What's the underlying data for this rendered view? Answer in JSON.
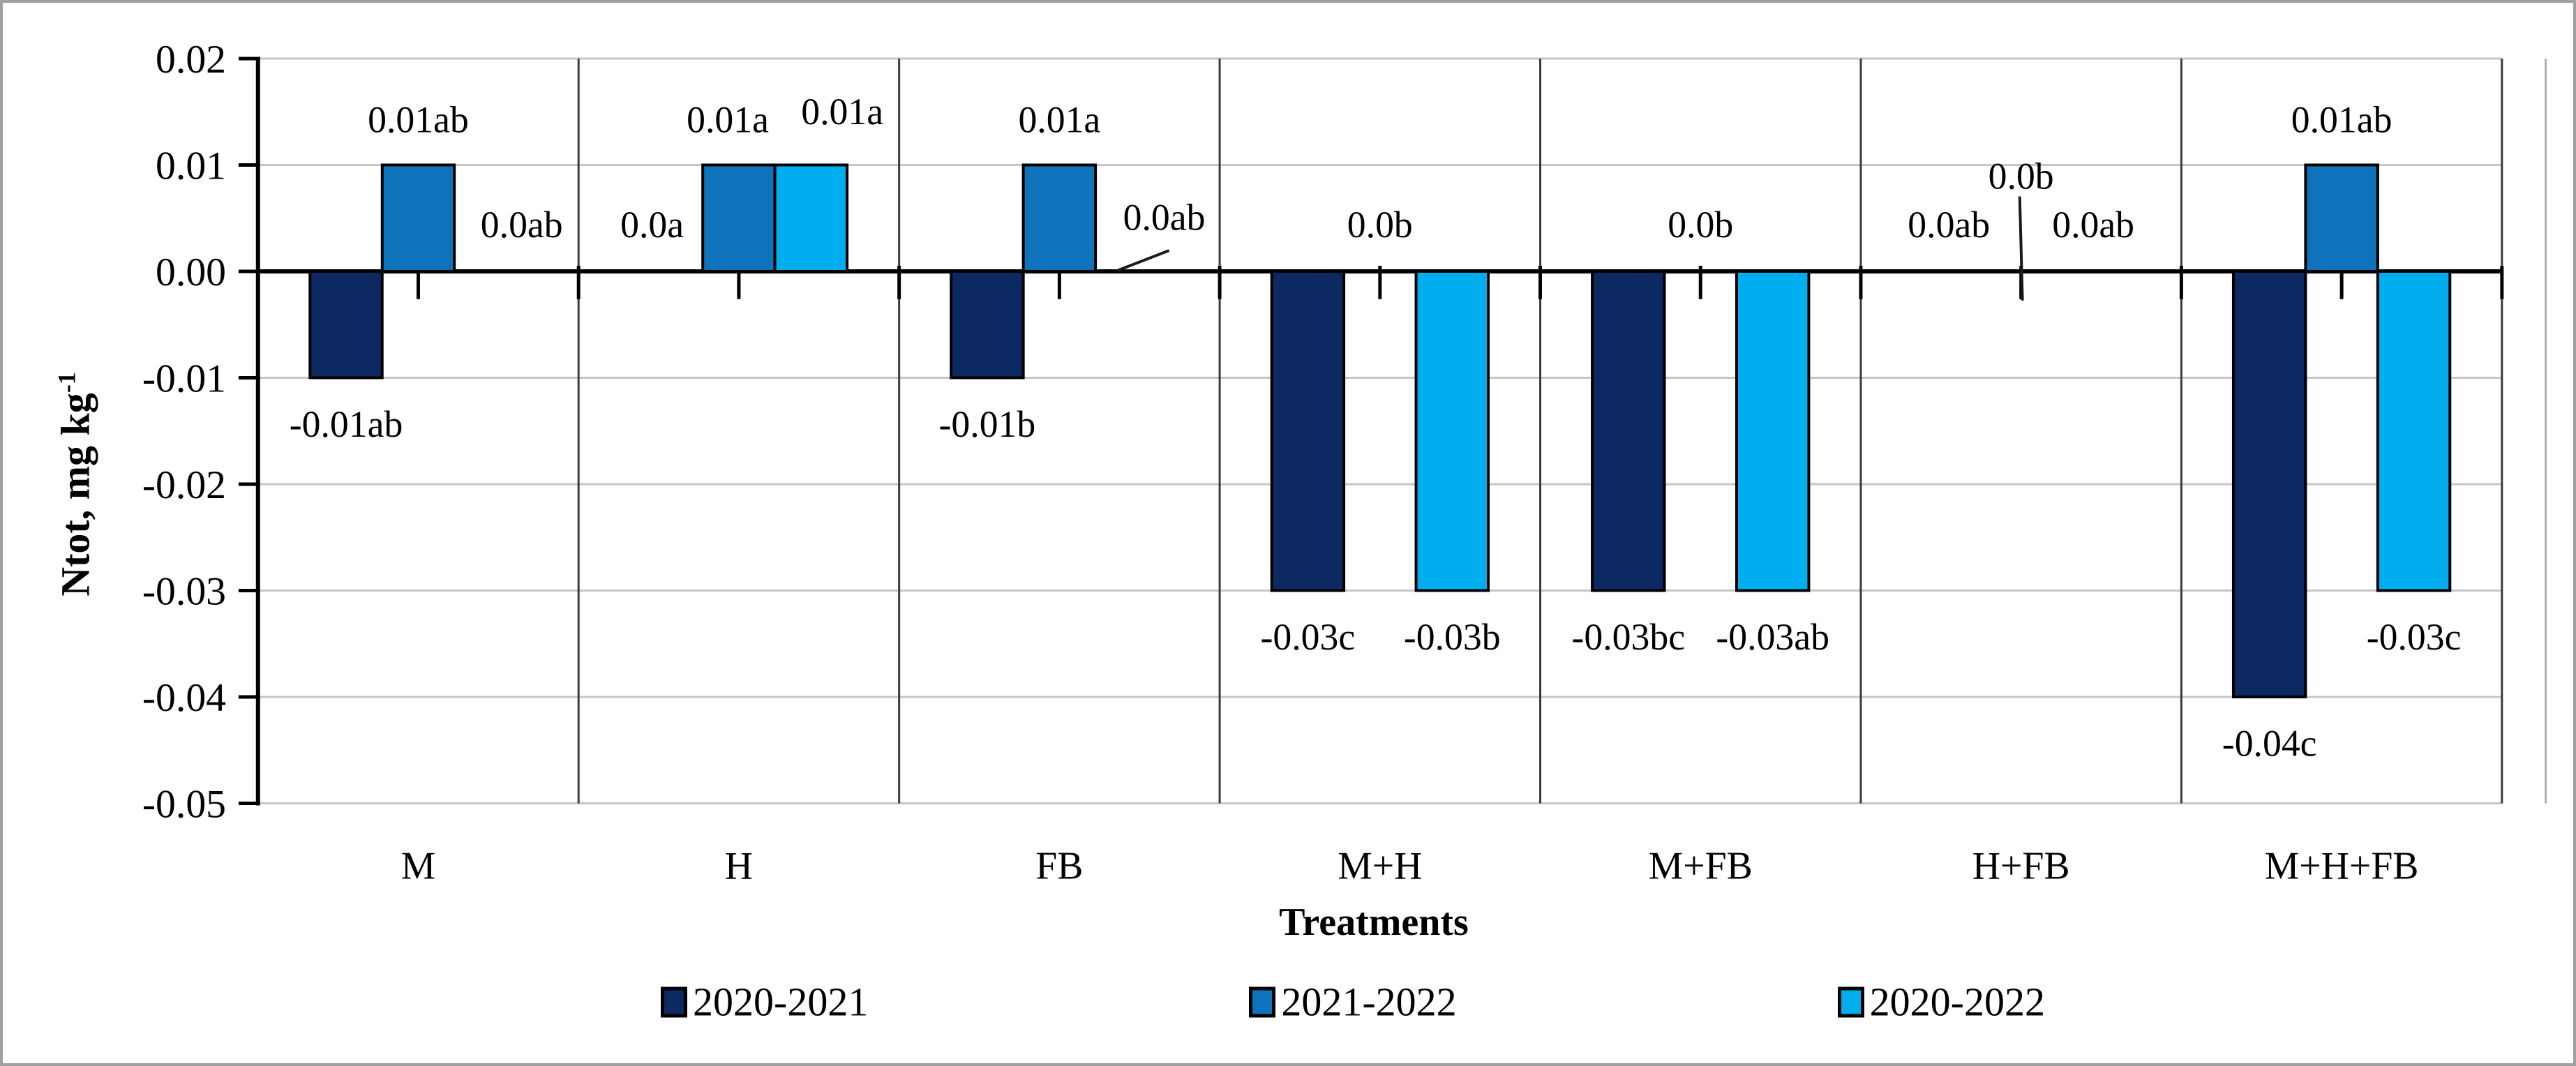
{
  "figure": {
    "background": "#ffffff",
    "border_color": "#a0a0a0"
  },
  "chart_data": {
    "type": "bar",
    "title": "",
    "ylabel": "Ntot, mg kg⁻¹",
    "ylabel_main": "Ntot, mg kg",
    "ylabel_sup": "-1",
    "xlabel": "Treatments",
    "ylim": [
      -0.05,
      0.02
    ],
    "ytick_step": 0.01,
    "yticks": [
      "0.02",
      "0.01",
      "0.00",
      "-0.01",
      "-0.02",
      "-0.03",
      "-0.04",
      "-0.05"
    ],
    "categories": [
      "M",
      "H",
      "FB",
      "M+H",
      "M+FB",
      "H+FB",
      "M+H+FB"
    ],
    "grid": "horizontal light gray lines each 0.01; dark vertical lines at category boundaries",
    "legend_position": "bottom",
    "series": [
      {
        "name": "2020-2021",
        "color": "#0c2962",
        "values": [
          -0.01,
          0,
          -0.01,
          -0.03,
          -0.03,
          0,
          -0.04
        ],
        "labels": [
          "-0.01ab",
          "0.0a",
          "-0.01b",
          "-0.03c",
          "-0.03bc",
          "0.0ab",
          "-0.04c"
        ]
      },
      {
        "name": "2021-2022",
        "color": "#0e73ba",
        "values": [
          0.01,
          0.01,
          0.01,
          0,
          0,
          0,
          0.01
        ],
        "labels": [
          "0.01ab",
          "0.01a",
          "0.01a",
          "0.0b",
          "0.0b",
          "0.0b",
          "0.01ab"
        ]
      },
      {
        "name": "2020-2022",
        "color": "#00aeef",
        "values": [
          0,
          0.01,
          0,
          -0.03,
          -0.03,
          0,
          -0.03
        ],
        "labels": [
          "0.0ab",
          "0.01a",
          "0.0ab",
          "-0.03b",
          "-0.03ab",
          "0.0ab",
          "-0.03c"
        ]
      }
    ],
    "label_adjust": {
      "0": {
        "1": {
          "dx": -21
        }
      },
      "1": {
        "1": {
          "dx": -16
        },
        "5": {
          "dy": -70,
          "leader": "vertical"
        }
      },
      "2": {
        "0": {
          "dx": 45
        },
        "1": {
          "dx": 45,
          "dy": -12
        },
        "2": {
          "dx": 47,
          "dy": -11,
          "leader": "diagonal"
        }
      }
    },
    "colors": {
      "gridline": "#c6c6c6",
      "category_line": "#3a3a3a",
      "plot_edge_line": "#b0b0b0",
      "axis": "#000000",
      "text": "#000000",
      "bar_border": "#000000"
    }
  }
}
